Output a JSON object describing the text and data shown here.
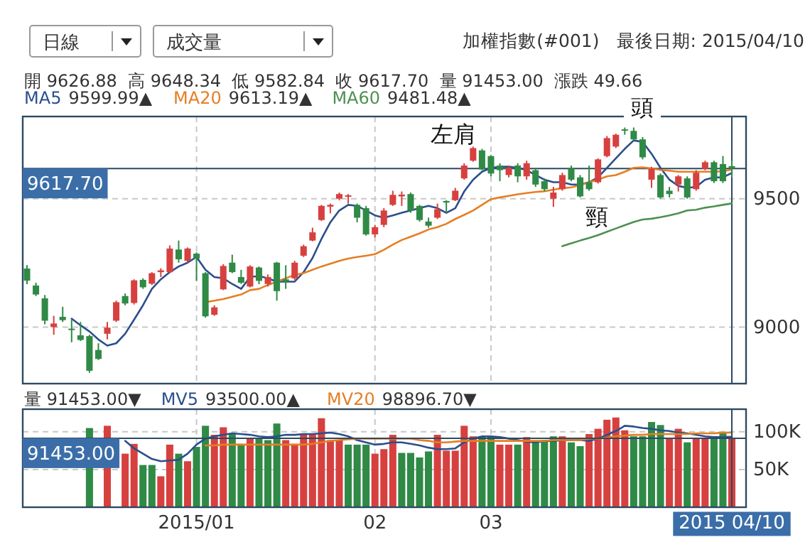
{
  "chart_data": [
    {
      "type": "candlestick",
      "title": "加權指數(#001)",
      "subtitle": "最後日期: 2015/04/10",
      "categories": [
        null,
        null,
        null,
        null,
        null,
        null,
        null,
        null,
        null,
        null,
        null,
        null,
        null,
        null,
        null,
        null,
        null,
        null,
        null,
        "2015/01",
        null,
        null,
        null,
        null,
        null,
        null,
        null,
        null,
        null,
        null,
        null,
        null,
        null,
        null,
        null,
        null,
        null,
        null,
        null,
        "02",
        null,
        null,
        null,
        null,
        null,
        null,
        null,
        null,
        null,
        null,
        null,
        null,
        "03",
        null,
        null,
        null,
        null,
        null,
        null,
        null,
        null,
        null,
        null,
        null,
        null,
        null,
        null,
        null,
        null,
        null,
        null,
        null,
        null,
        null,
        null,
        null,
        null,
        null,
        null,
        "2015 04/10"
      ],
      "ohlc": [
        [
          9228,
          9241,
          9167,
          9181
        ],
        [
          9162,
          9173,
          9121,
          9127
        ],
        [
          9112,
          9125,
          9011,
          9025
        ],
        [
          9000,
          9044,
          8970,
          9014
        ],
        [
          9040,
          9079,
          9020,
          9027
        ],
        [
          8994,
          9029,
          8941,
          8990
        ],
        [
          8968,
          9020,
          8946,
          8950
        ],
        [
          8965,
          8970,
          8822,
          8830
        ],
        [
          8911,
          8937,
          8872,
          8876
        ],
        [
          8974,
          9020,
          8952,
          8998
        ],
        [
          9025,
          9103,
          9020,
          9097
        ],
        [
          9121,
          9131,
          9085,
          9092
        ],
        [
          9094,
          9186,
          9088,
          9182
        ],
        [
          9184,
          9190,
          9149,
          9155
        ],
        [
          9169,
          9214,
          9164,
          9210
        ],
        [
          9214,
          9229,
          9195,
          9221
        ],
        [
          9214,
          9318,
          9210,
          9306
        ],
        [
          9302,
          9337,
          9251,
          9264
        ],
        [
          9258,
          9310,
          9251,
          9306
        ],
        [
          9286,
          9291,
          9180,
          9267
        ],
        [
          9210,
          9214,
          9037,
          9042
        ],
        [
          9048,
          9085,
          9044,
          9077
        ],
        [
          9147,
          9245,
          9144,
          9238
        ],
        [
          9251,
          9282,
          9210,
          9214
        ],
        [
          9195,
          9223,
          9168,
          9173
        ],
        [
          9158,
          9241,
          9155,
          9236
        ],
        [
          9232,
          9236,
          9167,
          9180
        ],
        [
          9168,
          9205,
          9158,
          9195
        ],
        [
          9251,
          9254,
          9103,
          9140
        ],
        [
          9186,
          9241,
          9149,
          9177
        ],
        [
          9190,
          9258,
          9184,
          9251
        ],
        [
          9278,
          9321,
          9273,
          9315
        ],
        [
          9337,
          9387,
          9334,
          9369
        ],
        [
          9417,
          9476,
          9413,
          9472
        ],
        [
          9469,
          9481,
          9443,
          9476
        ],
        [
          9500,
          9524,
          9494,
          9518
        ],
        [
          9509,
          9518,
          9481,
          9513
        ],
        [
          9476,
          9481,
          9408,
          9426
        ],
        [
          9463,
          9472,
          9356,
          9361
        ],
        [
          9361,
          9398,
          9349,
          9389
        ],
        [
          9398,
          9463,
          9389,
          9454
        ],
        [
          9476,
          9531,
          9472,
          9515
        ],
        [
          9509,
          9528,
          9472,
          9516
        ],
        [
          9518,
          9524,
          9445,
          9454
        ],
        [
          9472,
          9476,
          9411,
          9417
        ],
        [
          9411,
          9426,
          9387,
          9395
        ],
        [
          9426,
          9481,
          9421,
          9459
        ],
        [
          9491,
          9494,
          9445,
          9485
        ],
        [
          9494,
          9542,
          9491,
          9531
        ],
        [
          9579,
          9638,
          9574,
          9629
        ],
        [
          9648,
          9703,
          9644,
          9697
        ],
        [
          9688,
          9694,
          9611,
          9614
        ],
        [
          9666,
          9670,
          9587,
          9598
        ],
        [
          9629,
          9638,
          9568,
          9611
        ],
        [
          9592,
          9629,
          9583,
          9620
        ],
        [
          9629,
          9638,
          9564,
          9587
        ],
        [
          9587,
          9648,
          9574,
          9638
        ],
        [
          9611,
          9620,
          9546,
          9555
        ],
        [
          9568,
          9579,
          9528,
          9537
        ],
        [
          9500,
          9546,
          9468,
          9524
        ],
        [
          9537,
          9601,
          9531,
          9592
        ],
        [
          9620,
          9629,
          9568,
          9574
        ],
        [
          9583,
          9592,
          9505,
          9509
        ],
        [
          9564,
          9629,
          9531,
          9537
        ],
        [
          9564,
          9657,
          9559,
          9653
        ],
        [
          9666,
          9744,
          9661,
          9736
        ],
        [
          9703,
          9753,
          9697,
          9749
        ],
        [
          9770,
          9777,
          9749,
          9766
        ],
        [
          9764,
          9777,
          9727,
          9731
        ],
        [
          9731,
          9740,
          9653,
          9661
        ],
        [
          9574,
          9624,
          9542,
          9616
        ],
        [
          9592,
          9598,
          9500,
          9505
        ],
        [
          9531,
          9546,
          9505,
          9518
        ],
        [
          9555,
          9592,
          9528,
          9587
        ],
        [
          9579,
          9587,
          9500,
          9505
        ],
        [
          9537,
          9611,
          9531,
          9601
        ],
        [
          9616,
          9648,
          9611,
          9642
        ],
        [
          9642,
          9648,
          9561,
          9568
        ],
        [
          9635,
          9666,
          9561,
          9568
        ],
        [
          9626.88,
          9648.34,
          9582.84,
          9617.7
        ]
      ],
      "series": [
        {
          "name": "MA5",
          "type": "line",
          "color": "#2b4f8c",
          "values": [
            null,
            null,
            null,
            null,
            null,
            9033,
            9007,
            8983,
            8952,
            8928,
            8937,
            8974,
            9029,
            9085,
            9149,
            9186,
            9214,
            9236,
            9251,
            9273,
            9223,
            9195,
            9190,
            9168,
            9149,
            9195,
            9199,
            9190,
            9177,
            9177,
            9177,
            9214,
            9269,
            9343,
            9408,
            9454,
            9476,
            9472,
            9454,
            9435,
            9426,
            9435,
            9445,
            9454,
            9463,
            9472,
            9463,
            9445,
            9463,
            9528,
            9574,
            9605,
            9620,
            9624,
            9625,
            9620,
            9611,
            9592,
            9574,
            9564,
            9564,
            9555,
            9555,
            9564,
            9583,
            9620,
            9657,
            9694,
            9727,
            9721,
            9675,
            9620,
            9574,
            9550,
            9542,
            9546,
            9574,
            9583,
            9583,
            9599.99
          ]
        },
        {
          "name": "MA20",
          "type": "line",
          "color": "#e57f23",
          "values": [
            null,
            null,
            null,
            null,
            null,
            null,
            null,
            null,
            null,
            null,
            null,
            null,
            null,
            null,
            null,
            null,
            null,
            null,
            null,
            null,
            9097,
            9103,
            9109,
            9118,
            9127,
            9144,
            9149,
            9164,
            9177,
            9190,
            9203,
            9210,
            9223,
            9236,
            9247,
            9258,
            9267,
            9273,
            9278,
            9284,
            9301,
            9321,
            9339,
            9352,
            9365,
            9380,
            9389,
            9402,
            9421,
            9437,
            9454,
            9476,
            9498,
            9505,
            9511,
            9517,
            9522,
            9526,
            9529,
            9535,
            9541,
            9544,
            9553,
            9564,
            9574,
            9587,
            9592,
            9605,
            9620,
            9622,
            9618,
            9612,
            9609,
            9605,
            9605,
            9605,
            9605,
            9605,
            9607,
            9613.19
          ]
        },
        {
          "name": "MA60",
          "type": "line",
          "color": "#4d9150",
          "values": [
            null,
            null,
            null,
            null,
            null,
            null,
            null,
            null,
            null,
            null,
            null,
            null,
            null,
            null,
            null,
            null,
            null,
            null,
            null,
            null,
            null,
            null,
            null,
            null,
            null,
            null,
            null,
            null,
            null,
            null,
            null,
            null,
            null,
            null,
            null,
            null,
            null,
            null,
            null,
            null,
            null,
            null,
            null,
            null,
            null,
            null,
            null,
            null,
            null,
            null,
            null,
            null,
            null,
            null,
            null,
            null,
            null,
            null,
            null,
            null,
            9315,
            9326,
            9337,
            9347,
            9358,
            9371,
            9384,
            9397,
            9409,
            9419,
            9422,
            9428,
            9435,
            9443,
            9454,
            9457,
            9465,
            9470,
            9476,
            9481.48
          ]
        }
      ],
      "ylim": [
        8780,
        9820
      ],
      "yticks": [
        9000,
        9500
      ],
      "grid": true,
      "tick_labels": "y",
      "legend": "top left",
      "ref_lines": [
        {
          "axis": "y",
          "value": 9617.7,
          "label": "9617.70"
        },
        {
          "axis": "x",
          "value": "2015 04/10"
        }
      ],
      "annotations": [
        "日線",
        "成交量",
        "開 9626.88  高 9648.34  低 9582.84  收 9617.70  量 91453.00  漲跌 49.66",
        "9599.99▲",
        "9613.19▲",
        "9481.48▲",
        "左肩",
        "頭",
        "頸"
      ]
    },
    {
      "type": "bar",
      "categories": [
        null,
        null,
        null,
        null,
        null,
        null,
        null,
        null,
        null,
        null,
        null,
        null,
        null,
        null,
        null,
        null,
        null,
        null,
        null,
        "2015/01",
        null,
        null,
        null,
        null,
        null,
        null,
        null,
        null,
        null,
        null,
        null,
        null,
        null,
        null,
        null,
        null,
        null,
        null,
        null,
        "02",
        null,
        null,
        null,
        null,
        null,
        null,
        null,
        null,
        null,
        null,
        null,
        null,
        "03",
        null,
        null,
        null,
        null,
        null,
        null,
        null,
        null,
        null,
        null,
        null,
        null,
        null,
        null,
        null,
        null,
        null,
        null,
        null,
        null,
        null,
        null,
        null,
        null,
        null,
        null,
        "2015 04/10"
      ],
      "series": [
        {
          "type": "bar",
          "values": [
            null,
            null,
            null,
            null,
            null,
            null,
            null,
            105000,
            null,
            108000,
            null,
            71000,
            84000,
            56000,
            56000,
            41000,
            83000,
            71000,
            61000,
            80000,
            108000,
            96000,
            106000,
            97000,
            84000,
            91000,
            91000,
            89000,
            111000,
            89000,
            84000,
            97000,
            97000,
            118000,
            89000,
            89000,
            83000,
            83000,
            83000,
            71000,
            77000,
            96000,
            72000,
            72000,
            66000,
            74000,
            96000,
            75000,
            75000,
            108000,
            94000,
            94000,
            94000,
            83000,
            83000,
            83000,
            93000,
            86000,
            89000,
            94000,
            94000,
            86000,
            81000,
            97000,
            104000,
            116000,
            119000,
            102000,
            94000,
            94000,
            113000,
            109000,
            91000,
            104000,
            86000,
            91000,
            91000,
            91000,
            98000,
            91453
          ],
          "colors": [
            null,
            null,
            null,
            null,
            null,
            null,
            null,
            "#2f8a46",
            null,
            "#d6413f",
            null,
            "#d6413f",
            "#d6413f",
            "#2f8a46",
            "#2f8a46",
            "#d6413f",
            "#d6413f",
            "#2f8a46",
            "#d6413f",
            "#2f8a46",
            "#2f8a46",
            "#d6413f",
            "#d6413f",
            "#2f8a46",
            "#2f8a46",
            "#d6413f",
            "#2f8a46",
            "#2f8a46",
            "#2f8a46",
            "#d6413f",
            "#d6413f",
            "#d6413f",
            "#d6413f",
            "#d6413f",
            "#d6413f",
            "#d6413f",
            "#2f8a46",
            "#2f8a46",
            "#2f8a46",
            "#d6413f",
            "#d6413f",
            "#d6413f",
            "#2f8a46",
            "#2f8a46",
            "#2f8a46",
            "#2f8a46",
            "#d6413f",
            "#d6413f",
            "#d6413f",
            "#d6413f",
            "#d6413f",
            "#2f8a46",
            "#2f8a46",
            "#d6413f",
            "#d6413f",
            "#2f8a46",
            "#d6413f",
            "#2f8a46",
            "#2f8a46",
            "#2f8a46",
            "#d6413f",
            "#2f8a46",
            "#2f8a46",
            "#d6413f",
            "#d6413f",
            "#d6413f",
            "#d6413f",
            "#d6413f",
            "#2f8a46",
            "#2f8a46",
            "#2f8a46",
            "#2f8a46",
            "#d6413f",
            "#d6413f",
            "#2f8a46",
            "#d6413f",
            "#d6413f",
            "#2f8a46",
            "#2f8a46",
            "#d6413f"
          ]
        },
        {
          "name": "MV5",
          "type": "line",
          "color": "#2b4f8c",
          "values": [
            null,
            null,
            null,
            null,
            null,
            null,
            null,
            null,
            null,
            null,
            null,
            88000,
            78000,
            71000,
            64000,
            61000,
            62000,
            63000,
            71000,
            83000,
            91000,
            94000,
            96000,
            98000,
            97000,
            96000,
            94000,
            93000,
            94000,
            96000,
            96000,
            97000,
            97000,
            98000,
            99000,
            97000,
            94000,
            89000,
            86000,
            83000,
            84000,
            86000,
            86000,
            84000,
            82000,
            79000,
            77000,
            77000,
            78000,
            86000,
            91000,
            94000,
            94000,
            93000,
            91000,
            89000,
            87000,
            86000,
            88000,
            88000,
            89000,
            89000,
            89000,
            88000,
            91000,
            96000,
            101000,
            108000,
            107000,
            105000,
            104000,
            102000,
            101000,
            99000,
            98000,
            96000,
            94000,
            93000,
            93000,
            93500
          ]
        },
        {
          "name": "MV20",
          "type": "line",
          "color": "#e57f23",
          "values": [
            null,
            null,
            null,
            null,
            null,
            null,
            null,
            null,
            null,
            null,
            null,
            null,
            null,
            null,
            null,
            null,
            null,
            null,
            null,
            null,
            82000,
            82000,
            83000,
            83000,
            83000,
            83000,
            83000,
            83000,
            83000,
            83000,
            83000,
            83000,
            84000,
            86000,
            88000,
            89000,
            90000,
            91000,
            91000,
            91000,
            91000,
            91000,
            91000,
            91000,
            89000,
            88000,
            86000,
            86000,
            87000,
            88000,
            88000,
            88000,
            88000,
            88000,
            88000,
            88000,
            88000,
            88000,
            88000,
            89000,
            89000,
            89000,
            89000,
            91000,
            91000,
            92000,
            94000,
            95000,
            96000,
            96000,
            97000,
            97000,
            97000,
            97000,
            97000,
            98000,
            98000,
            98000,
            99000,
            98896.7
          ]
        }
      ],
      "ylim": [
        0,
        130000
      ],
      "yticks": [
        {
          "value": 50000,
          "label": "50K"
        },
        {
          "value": 100000,
          "label": "100K"
        }
      ],
      "grid": true,
      "legend": "top left",
      "ref_lines": [
        {
          "axis": "y",
          "value": 91453,
          "label": "91453.00"
        },
        {
          "axis": "x",
          "value": "2015 04/10"
        }
      ],
      "annotations": [
        "量 91453.00▼",
        "93500.00▲",
        "98896.70▼"
      ]
    }
  ]
}
